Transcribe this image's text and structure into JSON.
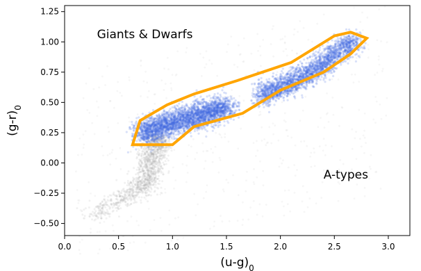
{
  "chart_data": {
    "type": "scatter",
    "xlabel": "(u-g)",
    "xlabel_sub": "0",
    "ylabel": "(g-r)",
    "ylabel_sub": "0",
    "xlim": [
      0.0,
      3.2
    ],
    "ylim": [
      -0.6,
      1.3
    ],
    "xticks": [
      0.0,
      0.5,
      1.0,
      1.5,
      2.0,
      2.5,
      3.0
    ],
    "xtick_labels": [
      "0.0",
      "0.5",
      "1.0",
      "1.5",
      "2.0",
      "2.5",
      "3.0"
    ],
    "yticks": [
      -0.5,
      -0.25,
      0.0,
      0.25,
      0.5,
      0.75,
      1.0,
      1.25
    ],
    "ytick_labels": [
      "−0.50",
      "−0.25",
      "0.00",
      "0.25",
      "0.50",
      "0.75",
      "1.00",
      "1.25"
    ],
    "grid": false,
    "annotations": [
      {
        "text": "Giants & Dwarfs",
        "x": 0.3,
        "y": 1.03
      },
      {
        "text": "A-types",
        "x": 2.4,
        "y": -0.13
      }
    ],
    "series": [
      {
        "color": "#b0b0b0",
        "density_ridge": [
          [
            0.25,
            -0.45
          ],
          [
            0.5,
            -0.3
          ],
          [
            0.7,
            -0.22
          ],
          [
            0.78,
            -0.12
          ],
          [
            0.8,
            -0.02
          ],
          [
            0.82,
            0.08
          ],
          [
            0.85,
            0.16
          ],
          [
            0.85,
            0.2
          ]
        ]
      },
      {
        "color": "#4169e1",
        "density_ridge": [
          [
            0.7,
            0.24
          ],
          [
            0.8,
            0.27
          ],
          [
            0.9,
            0.3
          ],
          [
            1.0,
            0.33
          ],
          [
            1.1,
            0.36
          ],
          [
            1.2,
            0.38
          ],
          [
            1.3,
            0.41
          ],
          [
            1.4,
            0.43
          ],
          [
            1.5,
            0.46
          ],
          [
            1.6,
            0.5
          ],
          [
            1.7,
            0.52
          ],
          [
            1.8,
            0.56
          ],
          [
            1.9,
            0.58
          ],
          [
            2.0,
            0.62
          ],
          [
            2.1,
            0.66
          ],
          [
            2.2,
            0.71
          ],
          [
            2.3,
            0.76
          ],
          [
            2.4,
            0.82
          ],
          [
            2.5,
            0.89
          ],
          [
            2.6,
            0.97
          ],
          [
            2.7,
            1.0
          ]
        ]
      }
    ],
    "selection_polygon": {
      "color": "#ffa500",
      "vertices": [
        [
          0.63,
          0.15
        ],
        [
          0.7,
          0.35
        ],
        [
          0.95,
          0.48
        ],
        [
          1.2,
          0.57
        ],
        [
          1.6,
          0.68
        ],
        [
          2.1,
          0.83
        ],
        [
          2.5,
          1.05
        ],
        [
          2.65,
          1.08
        ],
        [
          2.8,
          1.03
        ],
        [
          2.65,
          0.9
        ],
        [
          2.4,
          0.75
        ],
        [
          2.0,
          0.6
        ],
        [
          1.65,
          0.41
        ],
        [
          1.2,
          0.3
        ],
        [
          1.0,
          0.15
        ]
      ]
    }
  }
}
